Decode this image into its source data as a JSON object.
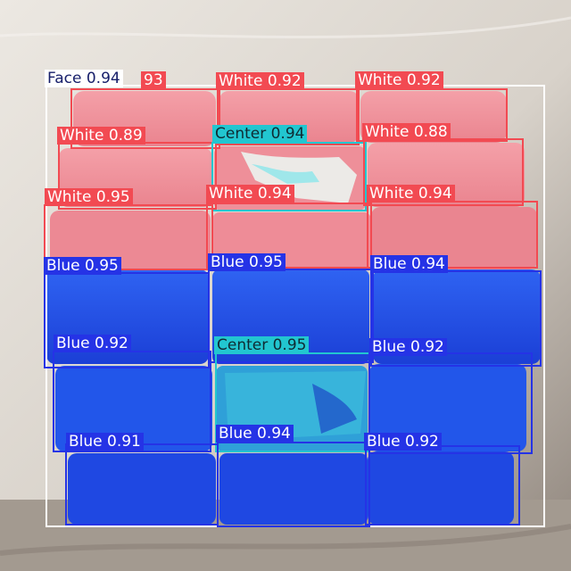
{
  "image": {
    "description_colors": {
      "table_light": "#e7e3dc",
      "table_wood": "#9a8e84",
      "white_face": "#ef8f99",
      "blue_face": "#1d49e3",
      "white_box": "#f24a52",
      "blue_box": "#2533e6",
      "center_box": "#22c6d0",
      "face_box": "#ffffff"
    }
  },
  "detections": [
    {
      "label": "Face 0.94",
      "class": "face"
    },
    {
      "label": "93",
      "class": "white"
    },
    {
      "label": "White 0.92",
      "class": "white"
    },
    {
      "label": "White 0.92",
      "class": "white"
    },
    {
      "label": "White 0.89",
      "class": "white"
    },
    {
      "label": "Center 0.94",
      "class": "center"
    },
    {
      "label": "White 0.88",
      "class": "white"
    },
    {
      "label": "White 0.95",
      "class": "white"
    },
    {
      "label": "White 0.94",
      "class": "white"
    },
    {
      "label": "White 0.94",
      "class": "white"
    },
    {
      "label": "Blue 0.95",
      "class": "blue"
    },
    {
      "label": "Blue 0.95",
      "class": "blue"
    },
    {
      "label": "Blue 0.94",
      "class": "blue"
    },
    {
      "label": "Blue 0.92",
      "class": "blue"
    },
    {
      "label": "Blue 0.92",
      "class": "blue"
    },
    {
      "label": "Center 0.95",
      "class": "center"
    },
    {
      "label": "Blue 0.91",
      "class": "blue"
    },
    {
      "label": "Blue 0.94",
      "class": "blue"
    },
    {
      "label": "Blue 0.92",
      "class": "blue"
    }
  ]
}
